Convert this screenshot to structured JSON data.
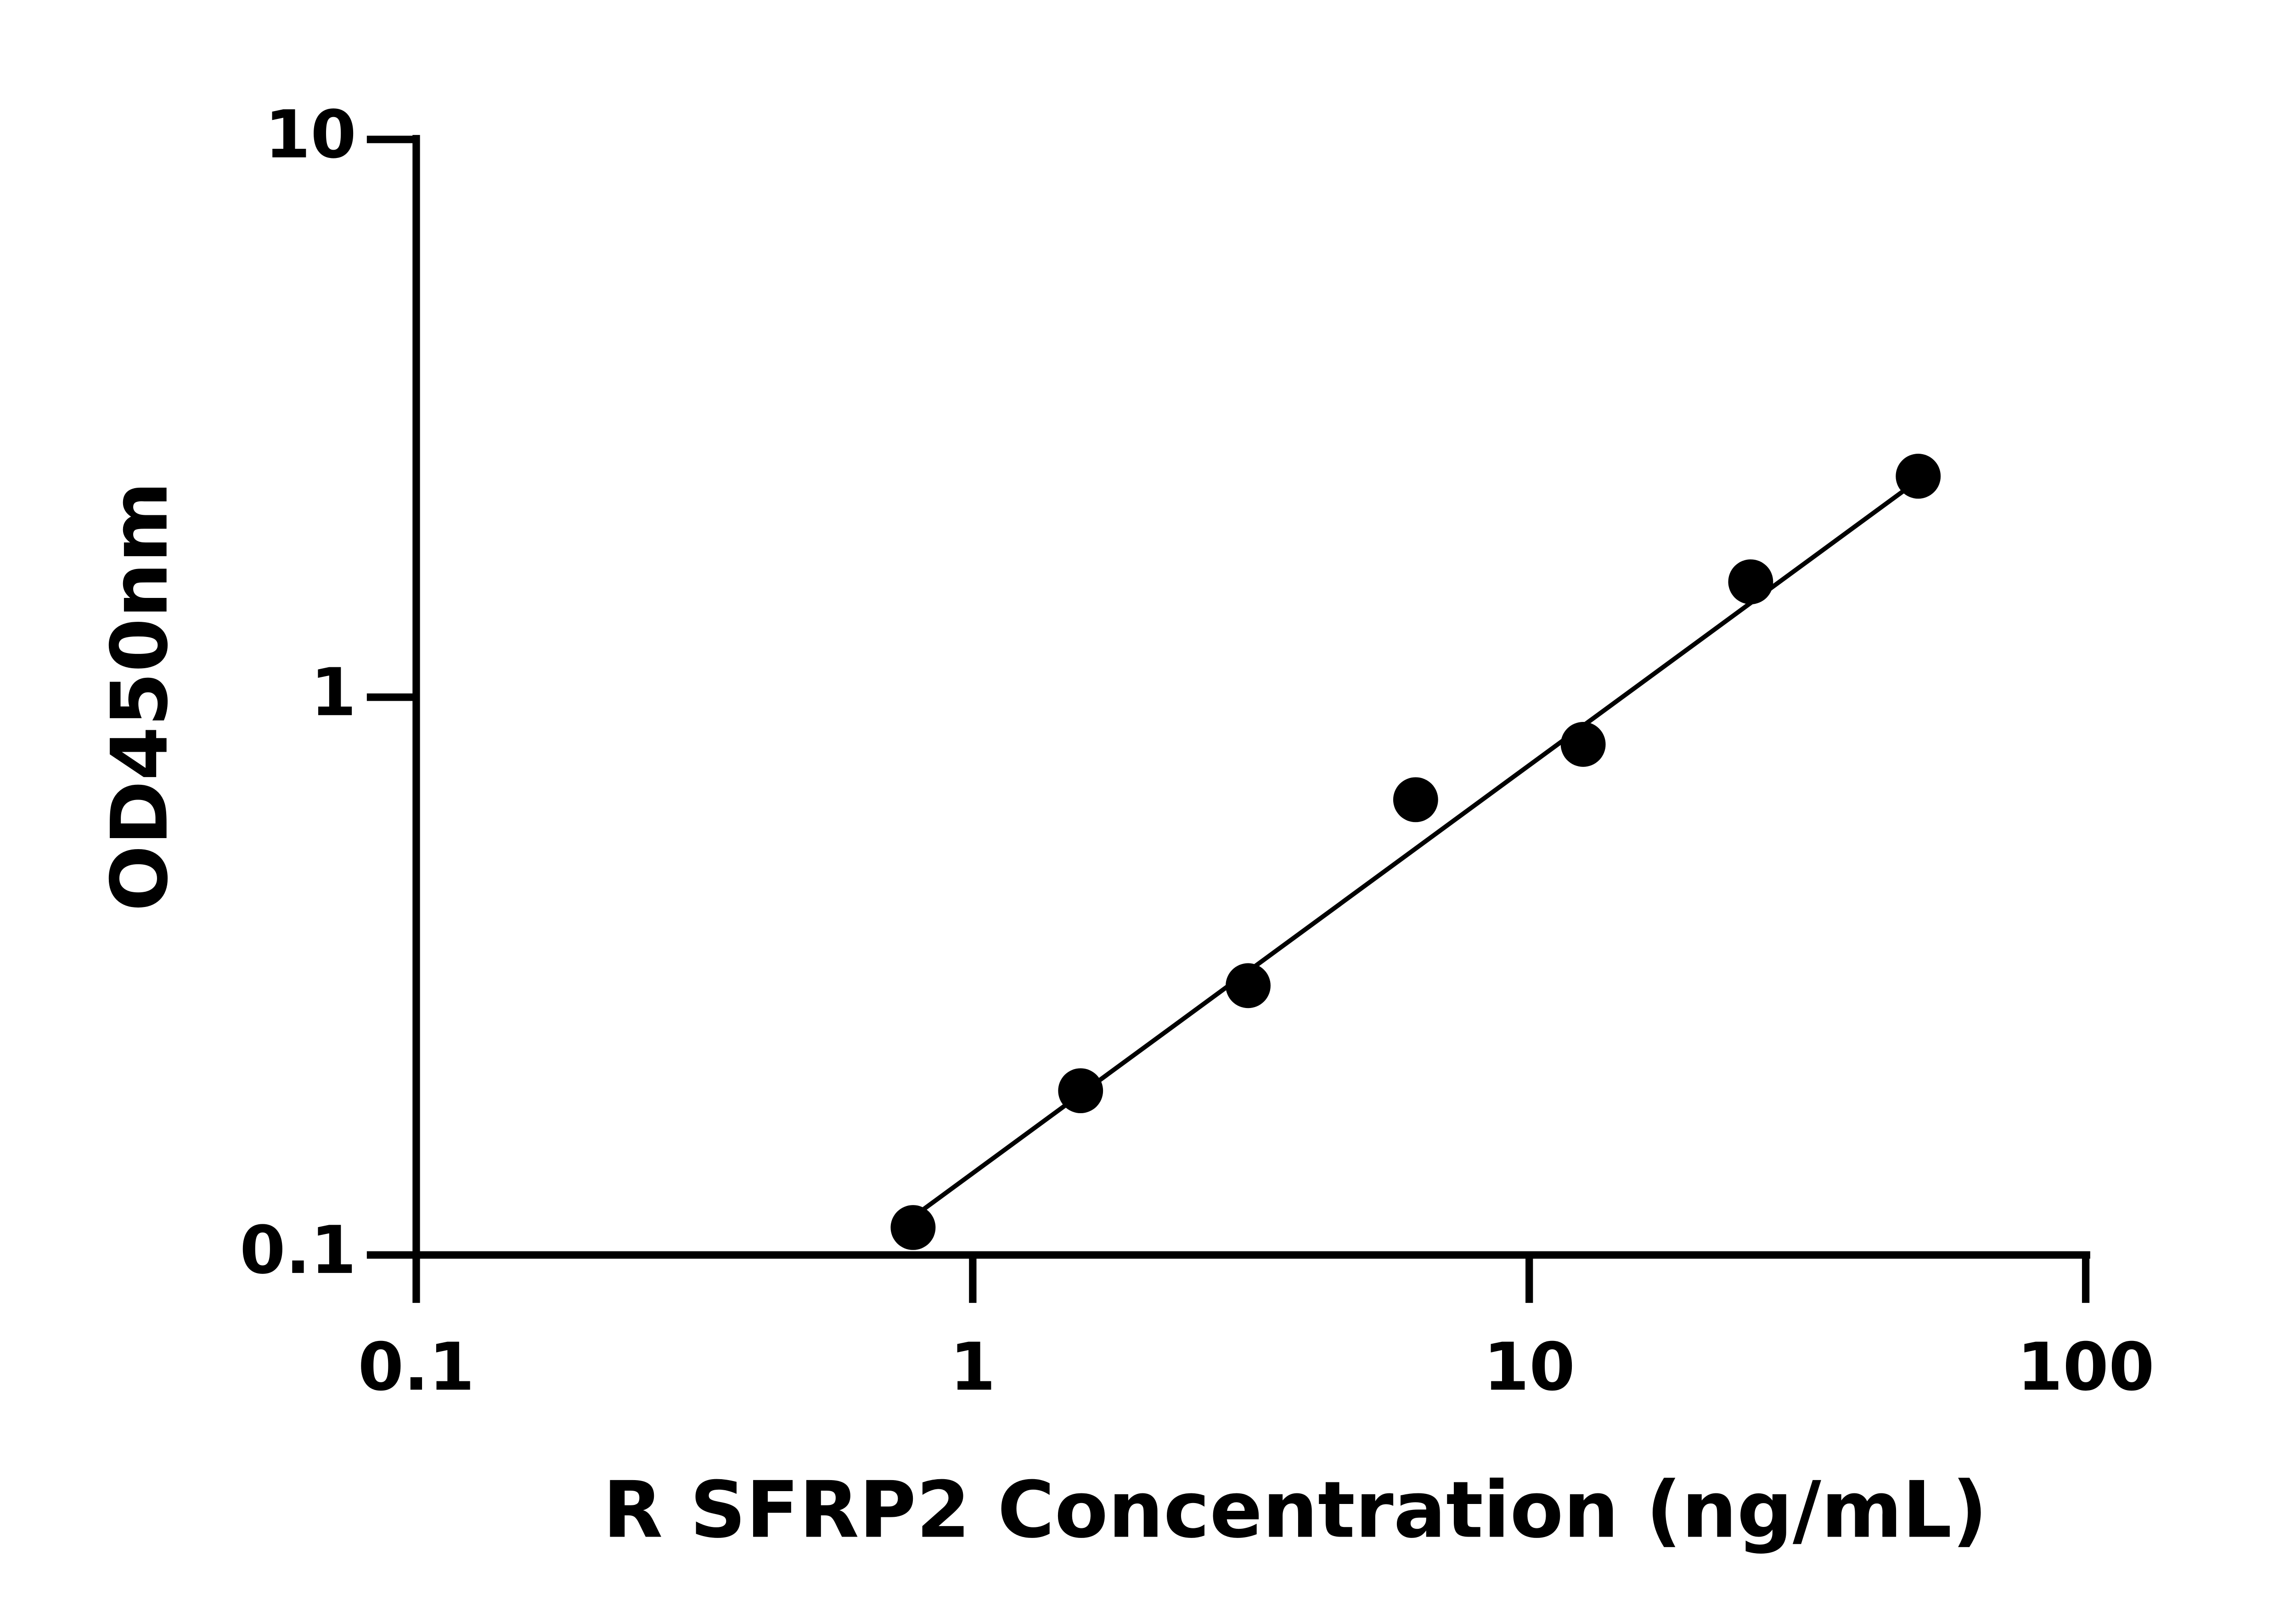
{
  "chart_data": {
    "type": "scatter",
    "xlabel": "R SFRP2 Concentration (ng/mL)",
    "ylabel": "OD450nm",
    "x": [
      0.78125,
      1.5625,
      3.125,
      6.25,
      12.5,
      25,
      50
    ],
    "values": [
      0.112,
      0.197,
      0.304,
      0.655,
      0.823,
      1.61,
      2.49
    ],
    "color": "#000000",
    "fit": {
      "x": [
        0.78125,
        50
      ],
      "values": [
        0.117,
        2.45
      ]
    },
    "xlim": [
      0.1,
      100
    ],
    "xticks": [
      0.1,
      1,
      10,
      100
    ],
    "ylim": [
      0.1,
      10
    ],
    "yticks": [
      0.1,
      1,
      10
    ],
    "xscale": "log",
    "yscale": "log",
    "grid": false
  }
}
